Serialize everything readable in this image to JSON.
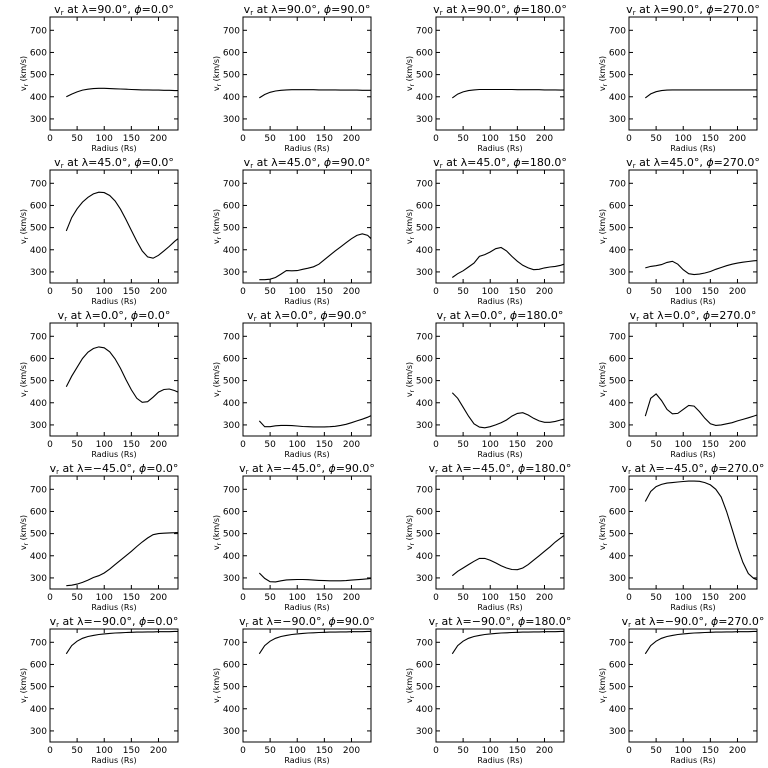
{
  "figure": {
    "x_tick_labels": [
      "0",
      "50",
      "100",
      "150",
      "200"
    ],
    "y_tick_labels": [
      "300",
      "400",
      "500",
      "600",
      "700"
    ],
    "ylabel_text": "v",
    "ylabel_sub": "r",
    "ylabel_units": "(km/s)"
  },
  "chart_data": [
    {
      "type": "line",
      "title_prefix": "v",
      "title_sub": "r",
      "title_mid": " at λ=90.0°, ",
      "title_phi": "ϕ",
      "title_end": "=0.0°",
      "xlabel": "Radius (Rs)",
      "ylabel": "v_r (km/s)",
      "xlim": [
        0,
        236
      ],
      "ylim": [
        250,
        760
      ],
      "x": [
        30,
        40,
        50,
        60,
        70,
        80,
        90,
        100,
        110,
        120,
        130,
        140,
        150,
        160,
        170,
        180,
        190,
        200,
        210,
        220,
        230,
        236
      ],
      "y": [
        400,
        412,
        422,
        430,
        434,
        437,
        438,
        438,
        437,
        436,
        435,
        434,
        433,
        432,
        431,
        431,
        430,
        430,
        429,
        429,
        428,
        428
      ]
    },
    {
      "type": "line",
      "title_prefix": "v",
      "title_sub": "r",
      "title_mid": " at λ=90.0°, ",
      "title_phi": "ϕ",
      "title_end": "=90.0°",
      "xlabel": "Radius (Rs)",
      "ylabel": "v_r (km/s)",
      "xlim": [
        0,
        236
      ],
      "ylim": [
        250,
        760
      ],
      "x": [
        30,
        40,
        50,
        60,
        70,
        80,
        90,
        100,
        110,
        120,
        130,
        140,
        150,
        160,
        170,
        180,
        190,
        200,
        210,
        220,
        230,
        236
      ],
      "y": [
        395,
        410,
        420,
        426,
        429,
        431,
        432,
        432,
        432,
        432,
        432,
        431,
        431,
        431,
        431,
        430,
        430,
        430,
        430,
        429,
        429,
        429
      ]
    },
    {
      "type": "line",
      "title_prefix": "v",
      "title_sub": "r",
      "title_mid": " at λ=90.0°, ",
      "title_phi": "ϕ",
      "title_end": "=180.0°",
      "xlabel": "Radius (Rs)",
      "ylabel": "v_r (km/s)",
      "xlim": [
        0,
        236
      ],
      "ylim": [
        250,
        760
      ],
      "x": [
        30,
        40,
        50,
        60,
        70,
        80,
        90,
        100,
        110,
        120,
        130,
        140,
        150,
        160,
        170,
        180,
        190,
        200,
        210,
        220,
        230,
        236
      ],
      "y": [
        395,
        412,
        422,
        428,
        431,
        433,
        433,
        433,
        433,
        433,
        433,
        433,
        432,
        432,
        432,
        432,
        432,
        431,
        431,
        431,
        430,
        430
      ]
    },
    {
      "type": "line",
      "title_prefix": "v",
      "title_sub": "r",
      "title_mid": " at λ=90.0°, ",
      "title_phi": "ϕ",
      "title_end": "=270.0°",
      "xlabel": "Radius (Rs)",
      "ylabel": "v_r (km/s)",
      "xlim": [
        0,
        236
      ],
      "ylim": [
        250,
        760
      ],
      "x": [
        30,
        40,
        50,
        60,
        70,
        80,
        90,
        100,
        110,
        120,
        130,
        140,
        150,
        160,
        170,
        180,
        190,
        200,
        210,
        220,
        230,
        236
      ],
      "y": [
        395,
        413,
        423,
        428,
        430,
        431,
        431,
        431,
        431,
        431,
        431,
        431,
        431,
        431,
        431,
        431,
        431,
        431,
        431,
        431,
        431,
        431
      ]
    },
    {
      "type": "line",
      "title_prefix": "v",
      "title_sub": "r",
      "title_mid": " at λ=45.0°, ",
      "title_phi": "ϕ",
      "title_end": "=0.0°",
      "xlabel": "Radius (Rs)",
      "ylabel": "v_r (km/s)",
      "xlim": [
        0,
        236
      ],
      "ylim": [
        250,
        760
      ],
      "x": [
        30,
        40,
        50,
        60,
        70,
        80,
        90,
        100,
        110,
        120,
        130,
        140,
        150,
        160,
        170,
        180,
        190,
        200,
        210,
        220,
        230,
        236
      ],
      "y": [
        485,
        545,
        585,
        615,
        637,
        652,
        660,
        658,
        645,
        620,
        583,
        537,
        487,
        438,
        395,
        368,
        362,
        375,
        395,
        415,
        438,
        450
      ]
    },
    {
      "type": "line",
      "title_prefix": "v",
      "title_sub": "r",
      "title_mid": " at λ=45.0°, ",
      "title_phi": "ϕ",
      "title_end": "=90.0°",
      "xlabel": "Radius (Rs)",
      "ylabel": "v_r (km/s)",
      "xlim": [
        0,
        236
      ],
      "ylim": [
        250,
        760
      ],
      "x": [
        30,
        40,
        50,
        60,
        70,
        80,
        90,
        100,
        110,
        120,
        130,
        140,
        150,
        160,
        170,
        180,
        190,
        200,
        210,
        220,
        230,
        236
      ],
      "y": [
        265,
        265,
        267,
        275,
        290,
        306,
        305,
        306,
        312,
        317,
        323,
        335,
        355,
        375,
        395,
        413,
        432,
        450,
        465,
        472,
        465,
        450
      ]
    },
    {
      "type": "line",
      "title_prefix": "v",
      "title_sub": "r",
      "title_mid": " at λ=45.0°, ",
      "title_phi": "ϕ",
      "title_end": "=180.0°",
      "xlabel": "Radius (Rs)",
      "ylabel": "v_r (km/s)",
      "xlim": [
        0,
        236
      ],
      "ylim": [
        250,
        760
      ],
      "x": [
        30,
        40,
        50,
        60,
        70,
        80,
        90,
        100,
        110,
        120,
        130,
        140,
        150,
        160,
        170,
        180,
        190,
        200,
        210,
        220,
        230,
        236
      ],
      "y": [
        275,
        292,
        305,
        322,
        340,
        370,
        378,
        390,
        405,
        410,
        395,
        370,
        348,
        330,
        318,
        310,
        312,
        318,
        322,
        325,
        330,
        335
      ]
    },
    {
      "type": "line",
      "title_prefix": "v",
      "title_sub": "r",
      "title_mid": " at λ=45.0°, ",
      "title_phi": "ϕ",
      "title_end": "=270.0°",
      "xlabel": "Radius (Rs)",
      "ylabel": "v_r (km/s)",
      "xlim": [
        0,
        236
      ],
      "ylim": [
        250,
        760
      ],
      "x": [
        30,
        40,
        50,
        60,
        70,
        80,
        90,
        100,
        110,
        120,
        130,
        140,
        150,
        160,
        170,
        180,
        190,
        200,
        210,
        220,
        230,
        236
      ],
      "y": [
        318,
        325,
        328,
        333,
        343,
        348,
        335,
        310,
        292,
        288,
        290,
        295,
        302,
        312,
        320,
        328,
        335,
        340,
        344,
        347,
        350,
        351
      ]
    },
    {
      "type": "line",
      "title_prefix": "v",
      "title_sub": "r",
      "title_mid": " at λ=0.0°, ",
      "title_phi": "ϕ",
      "title_end": "=0.0°",
      "xlabel": "Radius (Rs)",
      "ylabel": "v_r (km/s)",
      "xlim": [
        0,
        236
      ],
      "ylim": [
        250,
        760
      ],
      "x": [
        30,
        40,
        50,
        60,
        70,
        80,
        90,
        100,
        110,
        120,
        130,
        140,
        150,
        160,
        170,
        180,
        190,
        200,
        210,
        220,
        230,
        236
      ],
      "y": [
        472,
        520,
        560,
        600,
        628,
        645,
        652,
        648,
        630,
        598,
        555,
        505,
        458,
        420,
        402,
        405,
        425,
        448,
        460,
        462,
        455,
        448
      ]
    },
    {
      "type": "line",
      "title_prefix": "v",
      "title_sub": "r",
      "title_mid": " at λ=0.0°, ",
      "title_phi": "ϕ",
      "title_end": "=90.0°",
      "xlabel": "Radius (Rs)",
      "ylabel": "v_r (km/s)",
      "xlim": [
        0,
        236
      ],
      "ylim": [
        250,
        760
      ],
      "x": [
        30,
        40,
        50,
        60,
        70,
        80,
        90,
        100,
        110,
        120,
        130,
        140,
        150,
        160,
        170,
        180,
        190,
        200,
        210,
        220,
        230,
        236
      ],
      "y": [
        318,
        292,
        292,
        296,
        298,
        298,
        297,
        295,
        293,
        292,
        291,
        291,
        291,
        292,
        294,
        298,
        303,
        310,
        318,
        326,
        335,
        342
      ]
    },
    {
      "type": "line",
      "title_prefix": "v",
      "title_sub": "r",
      "title_mid": " at λ=0.0°, ",
      "title_phi": "ϕ",
      "title_end": "=180.0°",
      "xlabel": "Radius (Rs)",
      "ylabel": "v_r (km/s)",
      "xlim": [
        0,
        236
      ],
      "ylim": [
        250,
        760
      ],
      "x": [
        30,
        40,
        50,
        60,
        70,
        80,
        90,
        100,
        110,
        120,
        130,
        140,
        150,
        160,
        170,
        180,
        190,
        200,
        210,
        220,
        230,
        236
      ],
      "y": [
        445,
        420,
        380,
        340,
        305,
        290,
        287,
        292,
        300,
        310,
        322,
        340,
        352,
        355,
        345,
        330,
        318,
        312,
        312,
        316,
        322,
        326
      ]
    },
    {
      "type": "line",
      "title_prefix": "v",
      "title_sub": "r",
      "title_mid": " at λ=0.0°, ",
      "title_phi": "ϕ",
      "title_end": "=270.0°",
      "xlabel": "Radius (Rs)",
      "ylabel": "v_r (km/s)",
      "xlim": [
        0,
        236
      ],
      "ylim": [
        250,
        760
      ],
      "x": [
        30,
        40,
        50,
        60,
        70,
        80,
        90,
        100,
        110,
        120,
        130,
        140,
        150,
        160,
        170,
        180,
        190,
        200,
        210,
        220,
        230,
        236
      ],
      "y": [
        340,
        420,
        440,
        410,
        370,
        350,
        352,
        370,
        388,
        385,
        360,
        330,
        305,
        298,
        300,
        305,
        310,
        318,
        325,
        332,
        340,
        345
      ]
    },
    {
      "type": "line",
      "title_prefix": "v",
      "title_sub": "r",
      "title_mid": " at λ=−45.0°, ",
      "title_phi": "ϕ",
      "title_end": "=0.0°",
      "xlabel": "Radius (Rs)",
      "ylabel": "v_r (km/s)",
      "xlim": [
        0,
        236
      ],
      "ylim": [
        250,
        760
      ],
      "x": [
        30,
        40,
        50,
        60,
        70,
        80,
        90,
        100,
        110,
        120,
        130,
        140,
        150,
        160,
        170,
        180,
        190,
        200,
        210,
        220,
        230,
        236
      ],
      "y": [
        265,
        267,
        272,
        280,
        290,
        302,
        310,
        322,
        340,
        360,
        380,
        400,
        420,
        442,
        462,
        480,
        495,
        500,
        502,
        503,
        504,
        505
      ]
    },
    {
      "type": "line",
      "title_prefix": "v",
      "title_sub": "r",
      "title_mid": " at λ=−45.0°, ",
      "title_phi": "ϕ",
      "title_end": "=90.0°",
      "xlabel": "Radius (Rs)",
      "ylabel": "v_r (km/s)",
      "xlim": [
        0,
        236
      ],
      "ylim": [
        250,
        760
      ],
      "x": [
        30,
        40,
        50,
        60,
        70,
        80,
        90,
        100,
        110,
        120,
        130,
        140,
        150,
        160,
        170,
        180,
        190,
        200,
        210,
        220,
        230,
        236
      ],
      "y": [
        322,
        298,
        283,
        282,
        287,
        291,
        292,
        293,
        293,
        292,
        290,
        289,
        288,
        287,
        287,
        287,
        288,
        290,
        292,
        294,
        296,
        298
      ]
    },
    {
      "type": "line",
      "title_prefix": "v",
      "title_sub": "r",
      "title_mid": " at λ=−45.0°, ",
      "title_phi": "ϕ",
      "title_end": "=180.0°",
      "xlabel": "Radius (Rs)",
      "ylabel": "v_r (km/s)",
      "xlim": [
        0,
        236
      ],
      "ylim": [
        250,
        760
      ],
      "x": [
        30,
        40,
        50,
        60,
        70,
        80,
        90,
        100,
        110,
        120,
        130,
        140,
        150,
        160,
        170,
        180,
        190,
        200,
        210,
        220,
        230,
        236
      ],
      "y": [
        310,
        330,
        345,
        360,
        375,
        388,
        388,
        380,
        368,
        355,
        345,
        338,
        337,
        345,
        360,
        380,
        400,
        420,
        440,
        462,
        480,
        492
      ]
    },
    {
      "type": "line",
      "title_prefix": "v",
      "title_sub": "r",
      "title_mid": " at λ=−45.0°, ",
      "title_phi": "ϕ",
      "title_end": "=270.0°",
      "xlabel": "Radius (Rs)",
      "ylabel": "v_r (km/s)",
      "xlim": [
        0,
        236
      ],
      "ylim": [
        250,
        760
      ],
      "x": [
        30,
        40,
        50,
        60,
        70,
        80,
        90,
        100,
        110,
        120,
        130,
        140,
        150,
        160,
        170,
        180,
        190,
        200,
        210,
        220,
        230,
        236
      ],
      "y": [
        645,
        690,
        712,
        722,
        728,
        730,
        733,
        735,
        737,
        737,
        736,
        730,
        720,
        700,
        665,
        600,
        520,
        440,
        370,
        320,
        298,
        292
      ]
    },
    {
      "type": "line",
      "title_prefix": "v",
      "title_sub": "r",
      "title_mid": " at λ=−90.0°, ",
      "title_phi": "ϕ",
      "title_end": "=0.0°",
      "xlabel": "Radius (Rs)",
      "ylabel": "v_r (km/s)",
      "xlim": [
        0,
        236
      ],
      "ylim": [
        250,
        760
      ],
      "x": [
        30,
        40,
        50,
        60,
        70,
        80,
        90,
        100,
        110,
        120,
        130,
        140,
        150,
        160,
        170,
        180,
        190,
        200,
        210,
        220,
        230,
        236
      ],
      "y": [
        648,
        685,
        705,
        718,
        726,
        731,
        735,
        738,
        740,
        742,
        743,
        744,
        745,
        746,
        746,
        747,
        747,
        748,
        748,
        748,
        749,
        749
      ]
    },
    {
      "type": "line",
      "title_prefix": "v",
      "title_sub": "r",
      "title_mid": " at λ=−90.0°, ",
      "title_phi": "ϕ",
      "title_end": "=90.0°",
      "xlabel": "Radius (Rs)",
      "ylabel": "v_r (km/s)",
      "xlim": [
        0,
        236
      ],
      "ylim": [
        250,
        760
      ],
      "x": [
        30,
        40,
        50,
        60,
        70,
        80,
        90,
        100,
        110,
        120,
        130,
        140,
        150,
        160,
        170,
        180,
        190,
        200,
        210,
        220,
        230,
        236
      ],
      "y": [
        648,
        685,
        705,
        718,
        726,
        731,
        735,
        738,
        740,
        742,
        743,
        744,
        745,
        746,
        746,
        747,
        747,
        748,
        748,
        748,
        749,
        749
      ]
    },
    {
      "type": "line",
      "title_prefix": "v",
      "title_sub": "r",
      "title_mid": " at λ=−90.0°, ",
      "title_phi": "ϕ",
      "title_end": "=180.0°",
      "xlabel": "Radius (Rs)",
      "ylabel": "v_r (km/s)",
      "xlim": [
        0,
        236
      ],
      "ylim": [
        250,
        760
      ],
      "x": [
        30,
        40,
        50,
        60,
        70,
        80,
        90,
        100,
        110,
        120,
        130,
        140,
        150,
        160,
        170,
        180,
        190,
        200,
        210,
        220,
        230,
        236
      ],
      "y": [
        648,
        685,
        705,
        718,
        726,
        731,
        735,
        738,
        740,
        742,
        743,
        744,
        745,
        746,
        746,
        747,
        747,
        748,
        748,
        748,
        749,
        749
      ]
    },
    {
      "type": "line",
      "title_prefix": "v",
      "title_sub": "r",
      "title_mid": " at λ=−90.0°, ",
      "title_phi": "ϕ",
      "title_end": "=270.0°",
      "xlabel": "Radius (Rs)",
      "ylabel": "v_r (km/s)",
      "xlim": [
        0,
        236
      ],
      "ylim": [
        250,
        760
      ],
      "x": [
        30,
        40,
        50,
        60,
        70,
        80,
        90,
        100,
        110,
        120,
        130,
        140,
        150,
        160,
        170,
        180,
        190,
        200,
        210,
        220,
        230,
        236
      ],
      "y": [
        648,
        685,
        705,
        718,
        726,
        731,
        735,
        738,
        740,
        742,
        743,
        744,
        745,
        746,
        746,
        747,
        747,
        748,
        748,
        748,
        749,
        749
      ]
    }
  ]
}
